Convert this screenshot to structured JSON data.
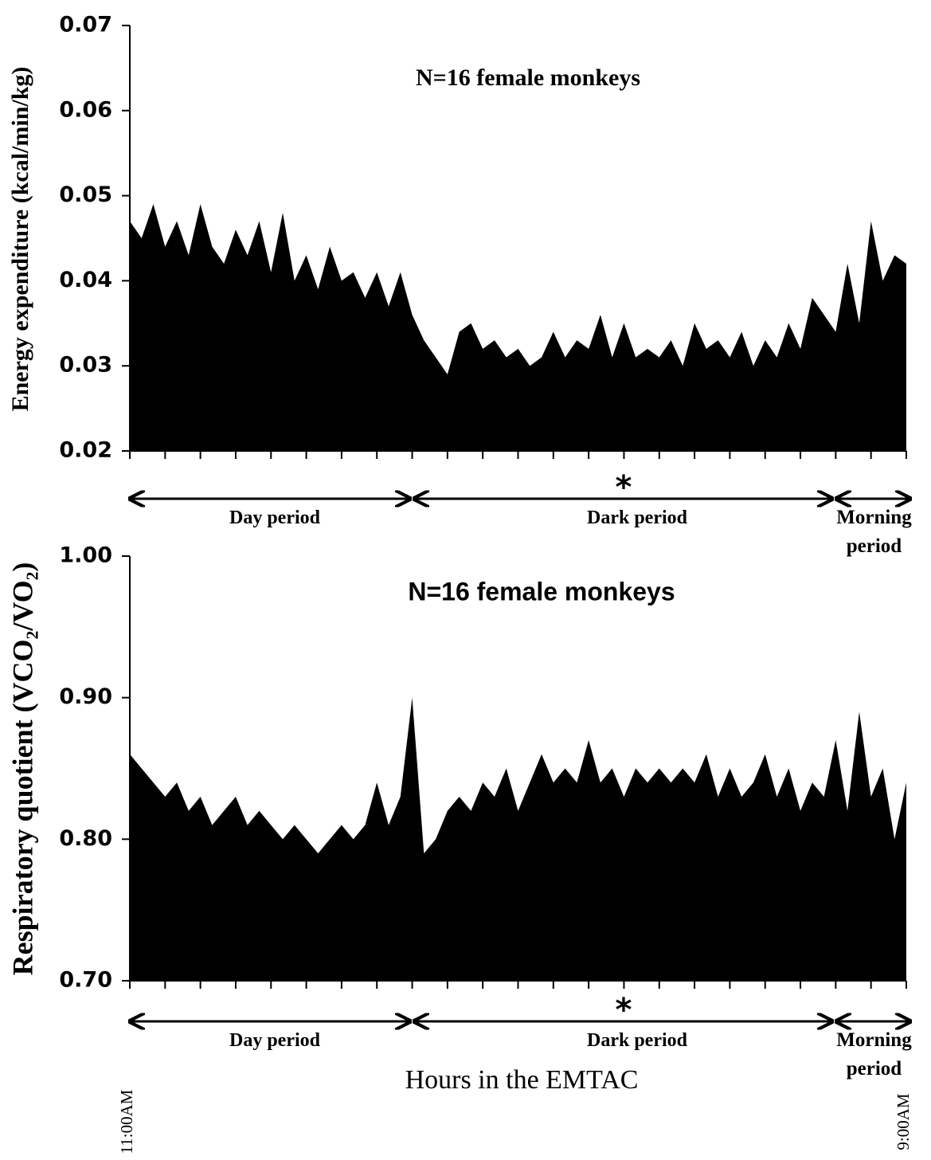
{
  "chart_data": [
    {
      "type": "area",
      "title": "N=16 female monkeys",
      "y_label": "Energy expenditure (kcal/min/kg)",
      "color": "#000000",
      "categories": [
        null,
        null,
        null,
        null,
        null,
        null,
        null,
        null,
        null,
        null,
        null,
        null,
        null,
        null,
        null,
        null,
        null,
        null,
        null,
        null,
        null,
        null,
        null,
        null,
        null,
        null,
        null,
        null,
        null,
        null,
        null,
        null,
        null,
        null,
        null,
        null,
        null,
        null,
        null,
        null,
        null,
        null,
        null,
        null,
        null,
        null,
        null,
        null,
        null,
        null,
        null,
        null,
        null,
        null,
        null,
        null,
        null,
        null,
        null,
        null,
        null,
        null,
        null,
        null,
        null,
        null,
        null
      ],
      "values": [
        0.047,
        0.045,
        0.049,
        0.044,
        0.047,
        0.043,
        0.049,
        0.044,
        0.042,
        0.046,
        0.043,
        0.047,
        0.041,
        0.048,
        0.04,
        0.043,
        0.039,
        0.044,
        0.04,
        0.041,
        0.038,
        0.041,
        0.037,
        0.041,
        0.036,
        0.033,
        0.031,
        0.029,
        0.034,
        0.035,
        0.032,
        0.033,
        0.031,
        0.032,
        0.03,
        0.031,
        0.034,
        0.031,
        0.033,
        0.032,
        0.036,
        0.031,
        0.035,
        0.031,
        0.032,
        0.031,
        0.033,
        0.03,
        0.035,
        0.032,
        0.033,
        0.031,
        0.034,
        0.03,
        0.033,
        0.031,
        0.035,
        0.032,
        0.038,
        0.036,
        0.034,
        0.042,
        0.035,
        0.047,
        0.04,
        0.043,
        0.042
      ],
      "ylim": [
        0.02,
        0.07
      ],
      "yticks": [
        0.02,
        0.03,
        0.04,
        0.05,
        0.06,
        0.07
      ],
      "periods": [
        "Day period",
        "Dark period",
        "Morning period"
      ],
      "marker": "*"
    },
    {
      "type": "area",
      "title": "N=16 female monkeys",
      "y_label": "Respiratory quotient (VCO₂/VO₂)",
      "x_label": "Hours in the EMTAC",
      "color": "#000000",
      "categories": [
        "11:00AM",
        null,
        null,
        null,
        null,
        null,
        null,
        null,
        null,
        null,
        null,
        null,
        null,
        null,
        null,
        null,
        null,
        null,
        null,
        null,
        null,
        null,
        null,
        null,
        null,
        null,
        null,
        null,
        null,
        null,
        null,
        null,
        null,
        null,
        null,
        null,
        null,
        null,
        null,
        null,
        null,
        null,
        null,
        null,
        null,
        null,
        null,
        null,
        null,
        null,
        null,
        null,
        null,
        null,
        null,
        null,
        null,
        null,
        null,
        null,
        null,
        null,
        null,
        null,
        null,
        null,
        "9:00AM"
      ],
      "values": [
        0.86,
        0.85,
        0.84,
        0.83,
        0.84,
        0.82,
        0.83,
        0.81,
        0.82,
        0.83,
        0.81,
        0.82,
        0.81,
        0.8,
        0.81,
        0.8,
        0.79,
        0.8,
        0.81,
        0.8,
        0.81,
        0.84,
        0.81,
        0.83,
        0.9,
        0.79,
        0.8,
        0.82,
        0.83,
        0.82,
        0.84,
        0.83,
        0.85,
        0.82,
        0.84,
        0.86,
        0.84,
        0.85,
        0.84,
        0.87,
        0.84,
        0.85,
        0.83,
        0.85,
        0.84,
        0.85,
        0.84,
        0.85,
        0.84,
        0.86,
        0.83,
        0.85,
        0.83,
        0.84,
        0.86,
        0.83,
        0.85,
        0.82,
        0.84,
        0.83,
        0.87,
        0.82,
        0.89,
        0.83,
        0.85,
        0.8,
        0.84
      ],
      "ylim": [
        0.7,
        1.0
      ],
      "yticks": [
        {
          "value": 0.7,
          "label": "0.70"
        },
        {
          "value": 0.8,
          "label": "0.80"
        },
        {
          "value": 0.9,
          "label": "0.90"
        },
        {
          "value": 1.0,
          "label": "1.00"
        }
      ],
      "periods": [
        "Day period",
        "Dark period",
        "Morning period"
      ],
      "marker": "*"
    }
  ]
}
